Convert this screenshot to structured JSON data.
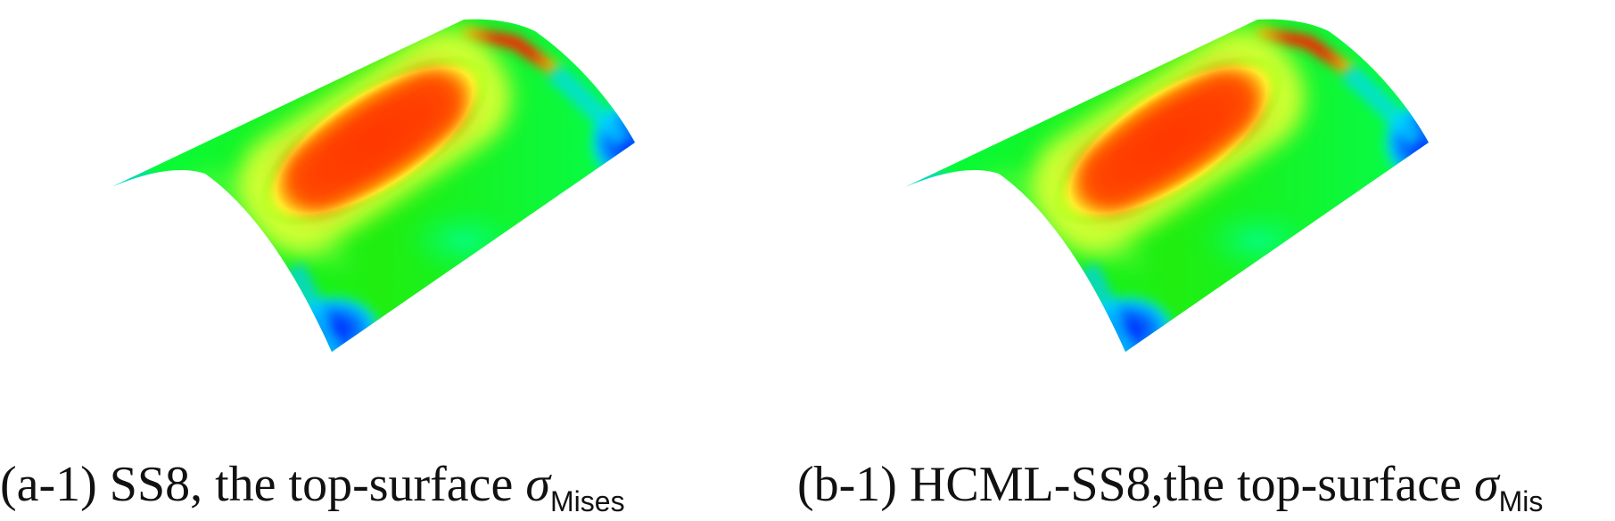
{
  "figure": {
    "panels": [
      {
        "label": "(a-1) SS8, the top-surface ",
        "symbol": "σ",
        "subscript": "Mises"
      },
      {
        "label": "(b-1) HCML-SS8,the top-surface ",
        "symbol": "σ",
        "subscript": "Mis"
      }
    ],
    "colormap": [
      "#0000ff",
      "#00aaff",
      "#00ffcc",
      "#00ff00",
      "#66ff00",
      "#ffff00",
      "#ffaa00",
      "#ff4400",
      "#ff0000"
    ]
  }
}
